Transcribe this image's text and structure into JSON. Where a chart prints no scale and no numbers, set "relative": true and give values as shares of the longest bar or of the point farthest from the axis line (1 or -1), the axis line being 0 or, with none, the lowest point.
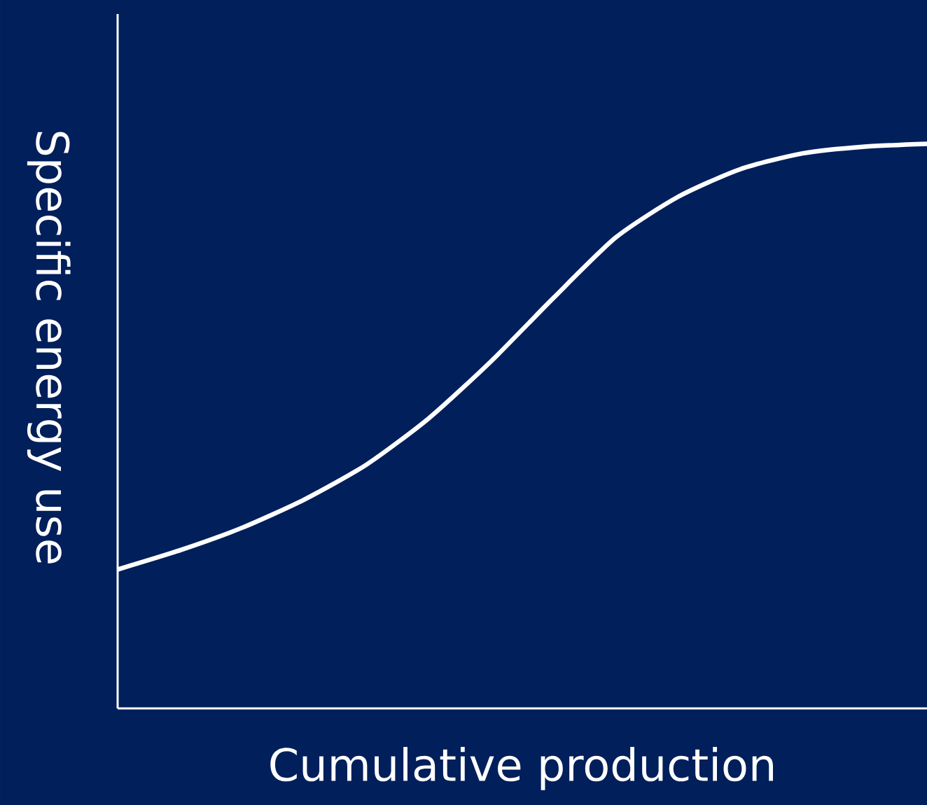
{
  "chart_data": {
    "type": "line",
    "xlabel": "Cumulative production",
    "ylabel": "Specific energy use",
    "relative": true,
    "categories": [
      null,
      null,
      null,
      null,
      null,
      null,
      null,
      null,
      null,
      null,
      null,
      null,
      null,
      null
    ],
    "series": [
      {
        "color": "#ffffff",
        "values": [
          0.246,
          0.28,
          0.32,
          0.37,
          0.432,
          0.514,
          0.615,
          0.727,
          0.834,
          0.906,
          0.955,
          0.983,
          0.995,
          1
        ]
      }
    ]
  }
}
